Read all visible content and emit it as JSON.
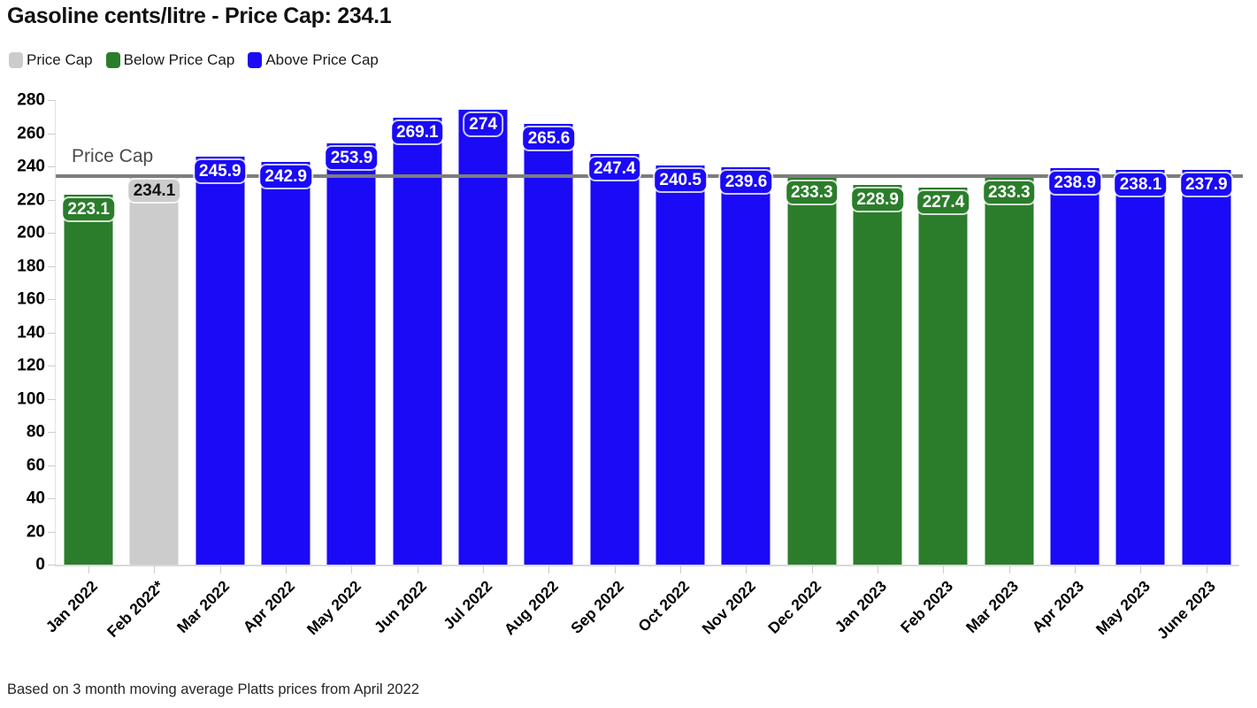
{
  "chart_data": {
    "type": "bar",
    "title": "Gasoline cents/litre - Price Cap: 234.1",
    "footnote": "Based on 3 month moving average Platts prices from April 2022",
    "price_cap": {
      "value": 234.1,
      "label": "Price Cap"
    },
    "ylim": [
      0,
      280
    ],
    "ytick_step": 20,
    "legend": [
      {
        "label": "Price Cap",
        "type": "cap"
      },
      {
        "label": "Below Price Cap",
        "type": "below"
      },
      {
        "label": "Above Price Cap",
        "type": "above"
      }
    ],
    "colors": {
      "cap": "#cccccc",
      "below": "#2b7d2b",
      "above": "#1a0af5",
      "cap_line": "#7d7d7d"
    },
    "categories": [
      "Jan 2022",
      "Feb 2022*",
      "Mar 2022",
      "Apr 2022",
      "May 2022",
      "Jun 2022",
      "Jul 2022",
      "Aug 2022",
      "Sep 2022",
      "Oct 2022",
      "Nov 2022",
      "Dec 2022",
      "Jan 2023",
      "Feb 2023",
      "Mar 2023",
      "Apr 2023",
      "May 2023",
      "June 2023"
    ],
    "values": [
      223.1,
      234.1,
      245.9,
      242.9,
      253.9,
      269.1,
      274,
      265.6,
      247.4,
      240.5,
      239.6,
      233.3,
      228.9,
      227.4,
      233.3,
      238.9,
      238.1,
      237.9
    ],
    "bar_types": [
      "below",
      "cap",
      "above",
      "above",
      "above",
      "above",
      "above",
      "above",
      "above",
      "above",
      "above",
      "below",
      "below",
      "below",
      "below",
      "above",
      "above",
      "above"
    ],
    "legend_position": "top-left",
    "grid": "off",
    "xlabel": "",
    "ylabel": ""
  }
}
